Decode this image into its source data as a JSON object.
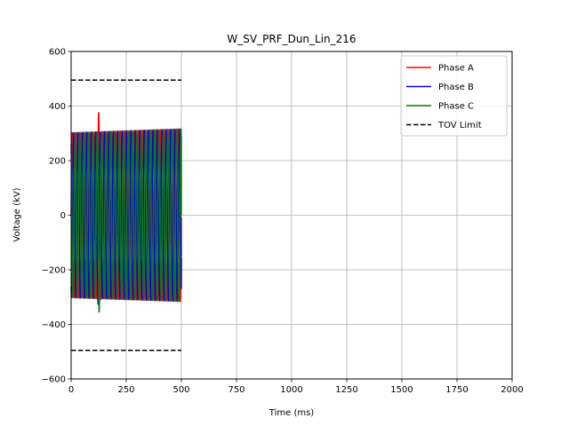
{
  "chart_data": {
    "type": "line",
    "title": "W_SV_PRF_Dun_Lin_216",
    "xlabel": "Time (ms)",
    "ylabel": "Voltage (kV)",
    "xlim": [
      0,
      2000
    ],
    "ylim": [
      -600,
      600
    ],
    "xticks": [
      0,
      250,
      500,
      750,
      1000,
      1250,
      1500,
      1750,
      2000
    ],
    "yticks": [
      -600,
      -400,
      -200,
      0,
      200,
      400,
      600
    ],
    "grid": true,
    "legend_position": "top-right",
    "waveform": {
      "frequency_hz": 50,
      "end_ms": 500,
      "amplitude_kv_start": 302,
      "amplitude_kv_end": 316,
      "disturbance_ms": 125
    },
    "series": [
      {
        "name": "Phase A",
        "color": "#ff0000",
        "style": "solid",
        "phase_deg": 0,
        "peak_kv": 375,
        "peak_ms": 125,
        "end_value_kv": -150
      },
      {
        "name": "Phase B",
        "color": "#0000ff",
        "style": "solid",
        "phase_deg": -120,
        "peak_kv": 395,
        "trough_kv": -352,
        "peak_ms": 126,
        "end_value_kv": -155
      },
      {
        "name": "Phase C",
        "color": "#008000",
        "style": "solid",
        "phase_deg": 120,
        "peak_kv": 350,
        "trough_kv": -410,
        "peak_ms": 124,
        "end_value_kv": 0
      },
      {
        "name": "TOV Limit",
        "color": "#000000",
        "style": "dashed",
        "x": [
          0,
          500
        ],
        "upper_kv": 495,
        "lower_kv": -495
      }
    ]
  }
}
